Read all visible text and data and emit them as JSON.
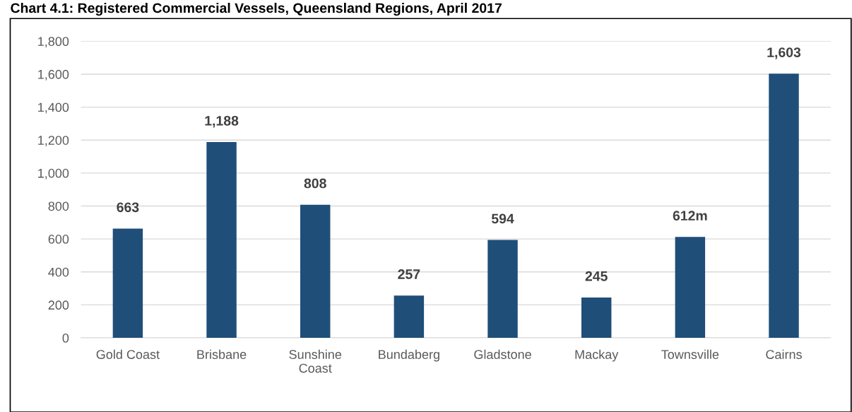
{
  "chart_data": {
    "type": "bar",
    "title": "Chart 4.1: Registered Commercial Vessels, Queensland Regions, April 2017",
    "categories": [
      "Gold Coast",
      "Brisbane",
      "Sunshine\nCoast",
      "Bundaberg",
      "Gladstone",
      "Mackay",
      "Townsville",
      "Cairns"
    ],
    "values": [
      663,
      1188,
      808,
      257,
      594,
      245,
      612,
      1603
    ],
    "value_labels": [
      "663",
      "1,188",
      "808",
      "257",
      "594",
      "245",
      "612m",
      "1,603"
    ],
    "color": "#1f4e79",
    "ylim": [
      0,
      1800
    ],
    "yticks": [
      0,
      {
        "value": 200,
        "label": "200"
      },
      {
        "value": 400,
        "label": "400"
      },
      {
        "value": 600,
        "label": "600"
      },
      {
        "value": 800,
        "label": "800"
      },
      {
        "value": 1000,
        "label": "1,000"
      },
      {
        "value": 1200,
        "label": "1,200"
      },
      {
        "value": 1400,
        "label": "1,400"
      },
      {
        "value": 1600,
        "label": "1,600"
      },
      {
        "value": 1800,
        "label": "1,800"
      }
    ],
    "grid": "y"
  }
}
